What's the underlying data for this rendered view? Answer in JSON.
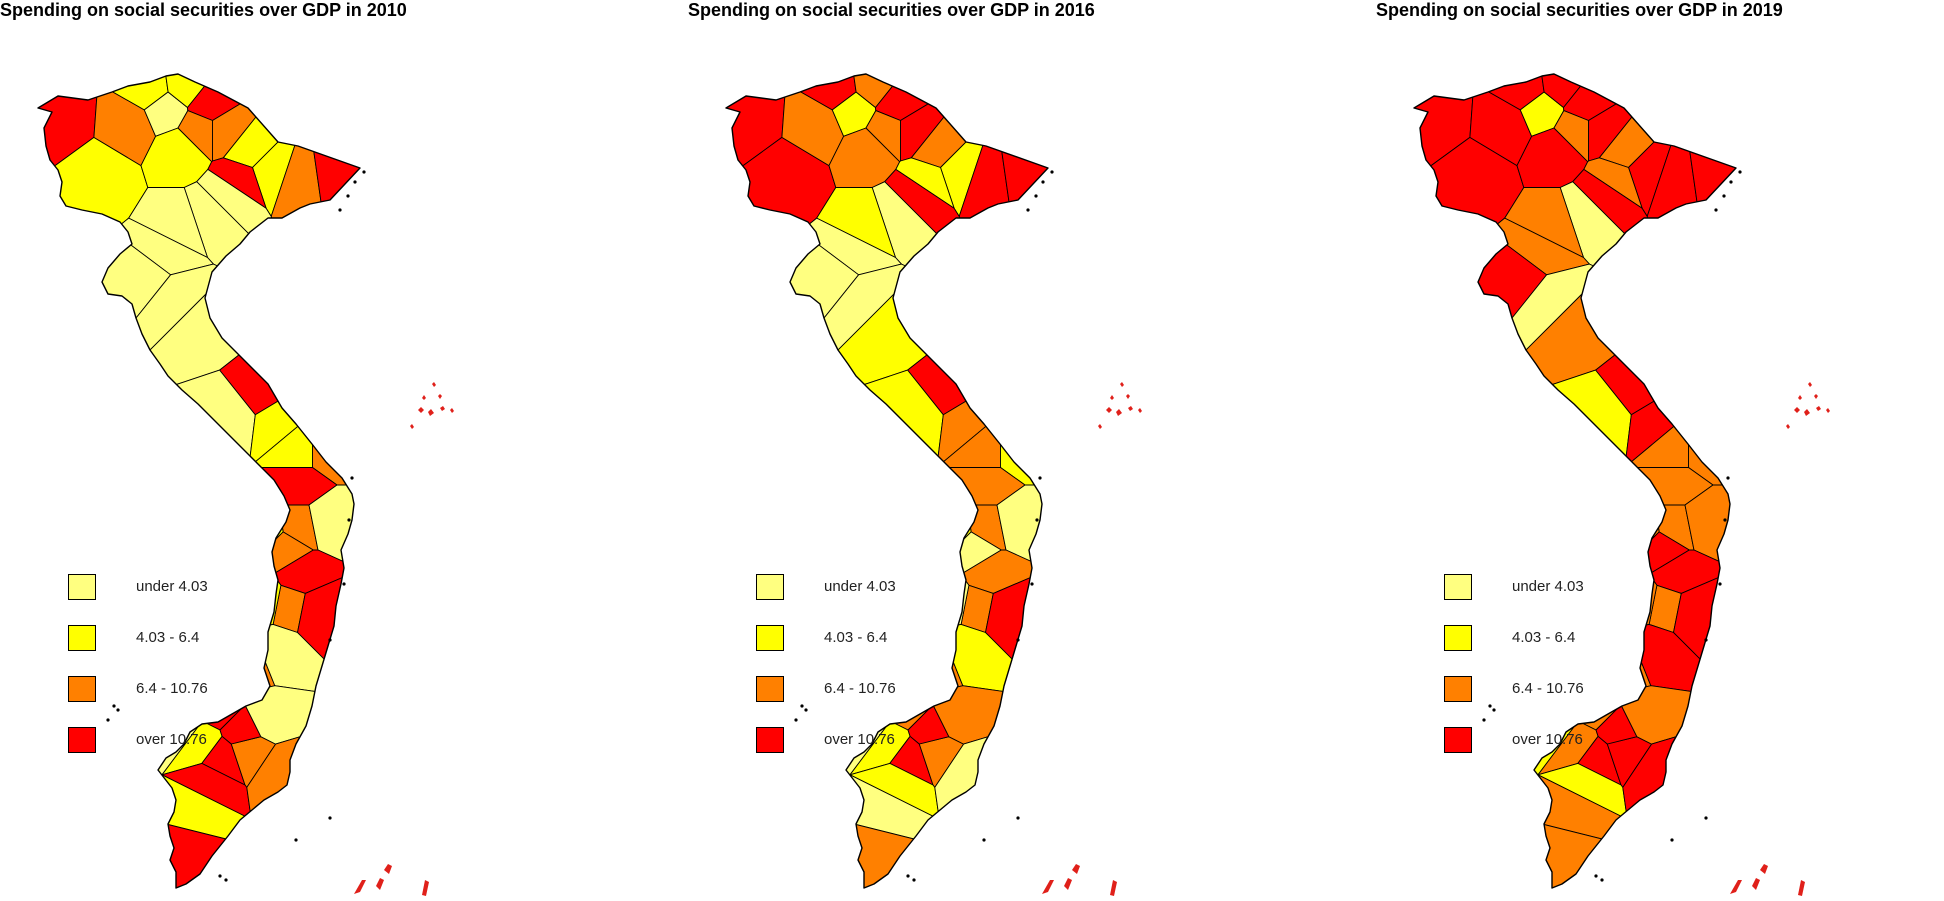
{
  "colors": {
    "class_1": "#FFFF80",
    "class_2": "#FFFF00",
    "class_3": "#FF8000",
    "class_4": "#FF0000",
    "border": "#000000",
    "islands": "#E0201A"
  },
  "legend": {
    "items": [
      {
        "label": "under 4.03",
        "class": 1
      },
      {
        "label": "4.03 - 6.4",
        "class": 2
      },
      {
        "label": "6.4 - 10.76",
        "class": 3
      },
      {
        "label": "over 10.76",
        "class": 4
      }
    ]
  },
  "maps": [
    {
      "title": "Spending on social securities over GDP in 2010",
      "year": 2010,
      "regions": [
        4,
        2,
        3,
        2,
        1,
        2,
        4,
        3,
        2,
        2,
        3,
        4,
        2,
        3,
        4,
        1,
        1,
        1,
        1,
        1,
        1,
        1,
        4,
        1,
        2,
        2,
        3,
        4,
        3,
        1,
        2,
        1,
        3,
        4,
        3,
        4,
        2,
        2,
        1,
        2,
        3,
        1,
        4,
        4,
        2,
        3,
        1,
        2,
        4,
        3,
        1,
        4,
        4,
        2,
        4,
        3
      ]
    },
    {
      "title": "Spending on social securities over GDP in 2016",
      "year": 2016,
      "regions": [
        4,
        4,
        3,
        4,
        2,
        3,
        4,
        4,
        3,
        2,
        4,
        4,
        3,
        3,
        2,
        4,
        1,
        2,
        1,
        1,
        1,
        2,
        4,
        2,
        3,
        3,
        2,
        3,
        3,
        1,
        2,
        1,
        1,
        3,
        3,
        4,
        1,
        1,
        1,
        2,
        3,
        2,
        4,
        3,
        3,
        4,
        1,
        2,
        4,
        3,
        3,
        4,
        2,
        1,
        3,
        1
      ]
    },
    {
      "title": "Spending on social securities over GDP in 2019",
      "year": 2019,
      "regions": [
        4,
        4,
        4,
        4,
        2,
        4,
        4,
        4,
        3,
        4,
        4,
        4,
        4,
        3,
        3,
        4,
        1,
        3,
        3,
        4,
        1,
        3,
        4,
        2,
        4,
        3,
        3,
        3,
        3,
        3,
        3,
        3,
        4,
        4,
        3,
        4,
        3,
        3,
        2,
        4,
        3,
        4,
        4,
        3,
        3,
        4,
        2,
        3,
        4,
        4,
        3,
        4,
        2,
        3,
        3,
        4
      ]
    }
  ]
}
